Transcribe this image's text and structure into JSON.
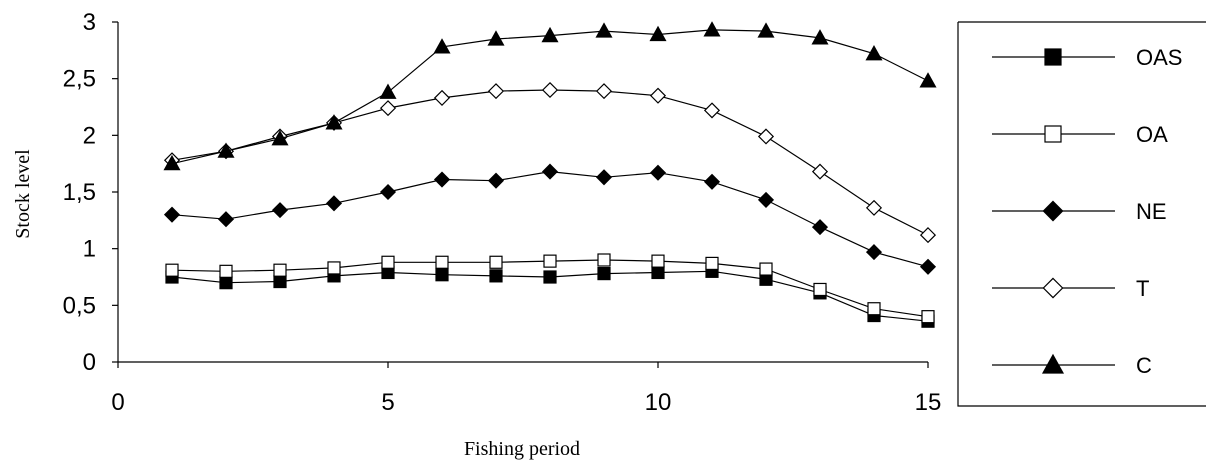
{
  "chart_data": {
    "type": "line",
    "xlabel": "Fishing period",
    "ylabel": "Stock level",
    "xlim": [
      0,
      15
    ],
    "ylim": [
      0,
      3
    ],
    "xticks": [
      {
        "value": 0,
        "label": "0"
      },
      {
        "value": 5,
        "label": "5"
      },
      {
        "value": 10,
        "label": "10"
      },
      {
        "value": 15,
        "label": "15"
      }
    ],
    "yticks": [
      {
        "value": 0,
        "label": "0"
      },
      {
        "value": 0.5,
        "label": "0,5"
      },
      {
        "value": 1,
        "label": "1"
      },
      {
        "value": 1.5,
        "label": "1,5"
      },
      {
        "value": 2,
        "label": "2"
      },
      {
        "value": 2.5,
        "label": "2,5"
      },
      {
        "value": 3,
        "label": "3"
      }
    ],
    "grid": false,
    "legend_position": "right",
    "x": [
      1,
      2,
      3,
      4,
      5,
      6,
      7,
      8,
      9,
      10,
      11,
      12,
      13,
      14,
      15
    ],
    "series": [
      {
        "name": "OAS",
        "marker": "filled-square",
        "values": [
          0.75,
          0.7,
          0.71,
          0.76,
          0.79,
          0.77,
          0.76,
          0.75,
          0.78,
          0.79,
          0.8,
          0.73,
          0.61,
          0.41,
          0.36
        ]
      },
      {
        "name": "OA",
        "marker": "hollow-square",
        "values": [
          0.81,
          0.8,
          0.81,
          0.83,
          0.88,
          0.88,
          0.88,
          0.89,
          0.9,
          0.89,
          0.87,
          0.82,
          0.64,
          0.47,
          0.4
        ]
      },
      {
        "name": "NE",
        "marker": "filled-diamond",
        "values": [
          1.3,
          1.26,
          1.34,
          1.4,
          1.5,
          1.61,
          1.6,
          1.68,
          1.63,
          1.67,
          1.59,
          1.43,
          1.19,
          0.97,
          0.84
        ]
      },
      {
        "name": "T",
        "marker": "hollow-diamond",
        "values": [
          1.78,
          1.86,
          1.99,
          2.11,
          2.24,
          2.33,
          2.39,
          2.4,
          2.39,
          2.35,
          2.22,
          1.99,
          1.68,
          1.36,
          1.12
        ]
      },
      {
        "name": "C",
        "marker": "filled-triangle",
        "values": [
          1.75,
          1.86,
          1.97,
          2.11,
          2.38,
          2.78,
          2.85,
          2.88,
          2.92,
          2.89,
          2.93,
          2.92,
          2.86,
          2.72,
          2.48
        ]
      }
    ]
  }
}
